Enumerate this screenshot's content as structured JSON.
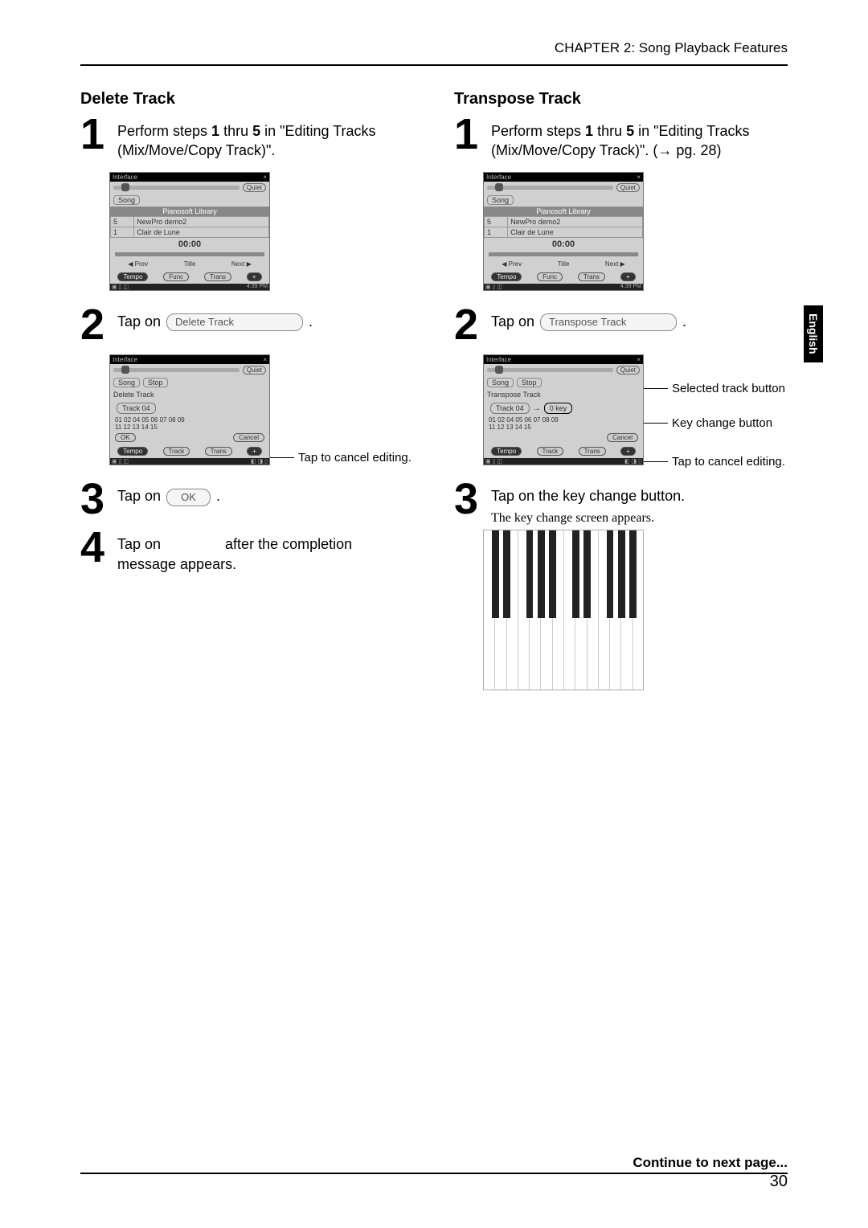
{
  "header": {
    "chapter": "CHAPTER 2: Song Playback Features"
  },
  "sideTab": "English",
  "footer": {
    "continue": "Continue to next page...",
    "page": "30"
  },
  "left": {
    "title": "Delete Track",
    "step1": {
      "num": "1",
      "text_a": "Perform steps ",
      "b1": "1",
      "mid": " thru ",
      "b5": "5",
      "text_b": " in \"Editing Tracks (Mix/Move/Copy Track)\"."
    },
    "step2": {
      "num": "2",
      "text": "Tap on ",
      "button": "Delete Track",
      "tail": " ."
    },
    "step3": {
      "num": "3",
      "text": "Tap on ",
      "button": "OK",
      "tail": " ."
    },
    "step4": {
      "num": "4",
      "text_a": "Tap on ",
      "text_b": " after the completion message appears."
    },
    "callouts": {
      "cancel": "Tap to cancel editing."
    },
    "shot": {
      "titlebar_left": "Interface",
      "titlebar_x": "×",
      "quiet": "Quiet",
      "song": "Song",
      "library": "Pianosoft Library",
      "rows": [
        [
          "5",
          "NewPro demo2"
        ],
        [
          "1",
          "Clair de Lune"
        ]
      ],
      "time": "00:00",
      "nav_prev": "◀ Prev",
      "nav_title": "Title",
      "nav_next": "Next ▶",
      "tab1": "Tempo",
      "tab2": "Func",
      "tab3": "Trans",
      "status_r": "4:39 PM",
      "stop": "Stop",
      "delete_label": "Delete Track",
      "track": "Track 04",
      "nums1": "01 02    04 05 06 07 08 09",
      "nums2": "11 12 13 14 15",
      "ok": "OK",
      "cancel": "Cancel",
      "tab_track": "Track"
    }
  },
  "right": {
    "title": "Transpose Track",
    "step1": {
      "num": "1",
      "text_a": "Perform steps ",
      "b1": "1",
      "mid": " thru ",
      "b5": "5",
      "text_b": " in \"Editing Tracks (Mix/Move/Copy Track)\". (→ pg. 28)"
    },
    "step2": {
      "num": "2",
      "text": "Tap on ",
      "button": "Transpose Track",
      "tail": " ."
    },
    "step3": {
      "num": "3",
      "text": "Tap on the key change button.",
      "sub": "The key change screen appears."
    },
    "callouts": {
      "selected": "Selected track button",
      "keychange": "Key change button",
      "cancel": "Tap to cancel editing."
    },
    "shot": {
      "transpose_label": "Transpose Track",
      "key": "0 key"
    }
  }
}
